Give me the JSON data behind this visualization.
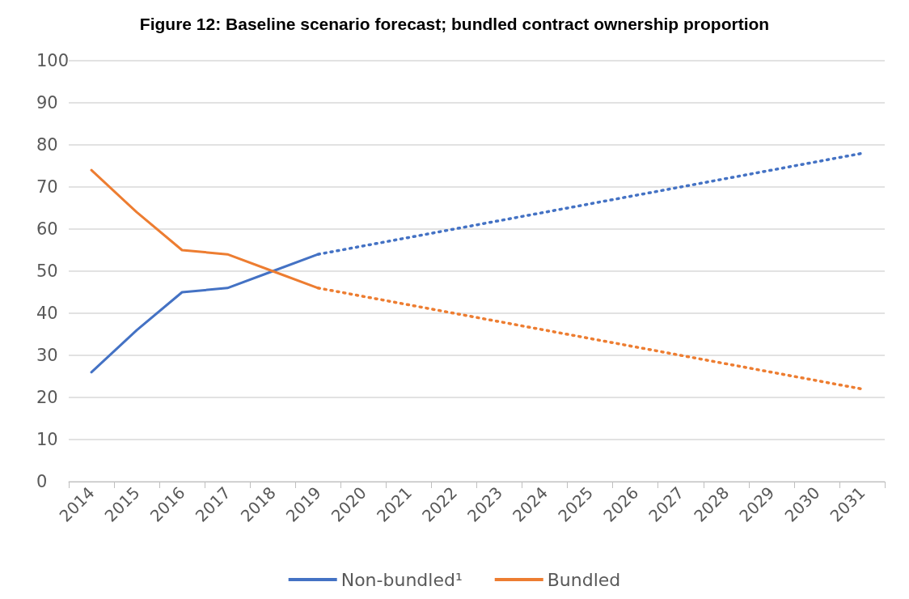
{
  "chart_data": {
    "type": "line",
    "title": "Figure 12: Baseline scenario forecast; bundled contract ownership proportion",
    "categories": [
      "2014",
      "2015",
      "2016",
      "2017",
      "2018",
      "2019",
      "2020",
      "2021",
      "2022",
      "2023",
      "2024",
      "2025",
      "2026",
      "2027",
      "2028",
      "2029",
      "2030",
      "2031"
    ],
    "series": [
      {
        "name": "Non-bundled¹",
        "color": "#4472c4",
        "line_style": "solid",
        "values": [
          26,
          36,
          45,
          46,
          50,
          54,
          null,
          null,
          null,
          null,
          null,
          null,
          null,
          null,
          null,
          null,
          null,
          null
        ]
      },
      {
        "color": "#4472c4",
        "line_style": "dotted",
        "values": [
          null,
          null,
          null,
          null,
          null,
          54,
          56,
          58,
          60,
          62,
          64,
          66,
          68,
          70,
          72,
          74,
          76,
          78
        ]
      },
      {
        "name": "Bundled",
        "color": "#ed7d31",
        "line_style": "solid",
        "values": [
          74,
          64,
          55,
          54,
          50,
          46,
          null,
          null,
          null,
          null,
          null,
          null,
          null,
          null,
          null,
          null,
          null,
          null
        ]
      },
      {
        "color": "#ed7d31",
        "line_style": "dotted",
        "values": [
          null,
          null,
          null,
          null,
          null,
          46,
          44,
          42,
          40,
          38,
          36,
          34,
          32,
          30,
          28,
          26,
          24,
          22
        ]
      }
    ],
    "ylim": [
      0,
      100
    ],
    "yticks": [
      0,
      10,
      20,
      30,
      40,
      50,
      60,
      70,
      80,
      90,
      100
    ],
    "grid": "y",
    "legend": "bottom",
    "marker": "none"
  }
}
